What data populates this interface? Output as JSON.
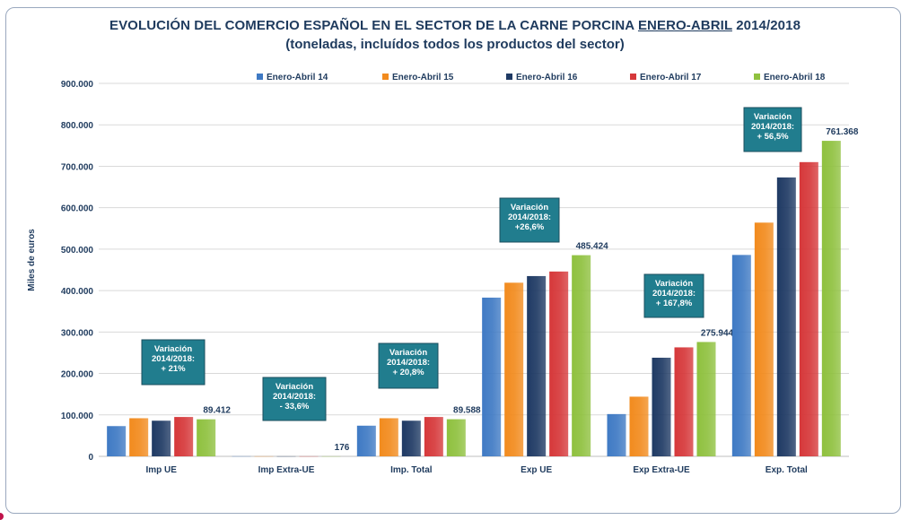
{
  "chart_data": {
    "type": "bar",
    "title_parts": [
      "EVOLUCIÓN DEL COMERCIO ESPAÑOL EN EL SECTOR DE LA CARNE PORCINA ",
      "ENERO-ABRIL",
      " 2014/2018"
    ],
    "subtitle": "(toneladas, incluídos todos los productos del sector)",
    "ylabel": "Miles de euros",
    "xlabel": "",
    "ylim": [
      0,
      900000
    ],
    "yticks": [
      0,
      100000,
      200000,
      300000,
      400000,
      500000,
      600000,
      700000,
      800000,
      900000
    ],
    "ytick_labels": [
      "0",
      "100.000",
      "200.000",
      "300.000",
      "400.000",
      "500.000",
      "600.000",
      "700.000",
      "800.000",
      "900.000"
    ],
    "grid": true,
    "legend_position": "top",
    "categories": [
      "Imp UE",
      "Imp Extra-UE",
      "Imp. Total",
      "Exp UE",
      "Exp Extra-UE",
      "Exp. Total"
    ],
    "series": [
      {
        "name": "Enero-Abril 14",
        "color": "#3f7ac4",
        "values": [
          73000,
          265,
          74000,
          383000,
          102000,
          486000
        ]
      },
      {
        "name": "Enero-Abril 15",
        "color": "#f28b1e",
        "values": [
          92000,
          200,
          92000,
          419000,
          144000,
          564000
        ]
      },
      {
        "name": "Enero-Abril 16",
        "color": "#1f3a64",
        "values": [
          86000,
          180,
          86000,
          435000,
          238000,
          673000
        ]
      },
      {
        "name": "Enero-Abril 17",
        "color": "#d6383a",
        "values": [
          95000,
          190,
          95000,
          446000,
          263000,
          710000
        ]
      },
      {
        "name": "Enero-Abril 18",
        "color": "#8fc13f",
        "values": [
          89412,
          176,
          89588,
          485424,
          275944,
          761368
        ]
      }
    ],
    "value_labels": [
      "89.412",
      "176",
      "89.588",
      "485.424",
      "275.944",
      "761.368"
    ],
    "annotations": [
      {
        "category": "Imp UE",
        "lines": [
          "Variación",
          "2014/2018:",
          "+ 21%"
        ]
      },
      {
        "category": "Imp Extra-UE",
        "lines": [
          "Variación",
          "2014/2018:",
          "- 33,6%"
        ]
      },
      {
        "category": "Imp. Total",
        "lines": [
          "Variación",
          "2014/2018:",
          "+ 20,8%"
        ]
      },
      {
        "category": "Exp UE",
        "lines": [
          "Variación",
          "2014/2018:",
          "+26,6%"
        ]
      },
      {
        "category": "Exp Extra-UE",
        "lines": [
          "Variación",
          "2014/2018:",
          "+ 167,8%"
        ]
      },
      {
        "category": "Exp. Total",
        "lines": [
          "Variación",
          "2014/2018:",
          "+ 56,5%"
        ]
      }
    ],
    "annotation_color": "#217d8e"
  }
}
